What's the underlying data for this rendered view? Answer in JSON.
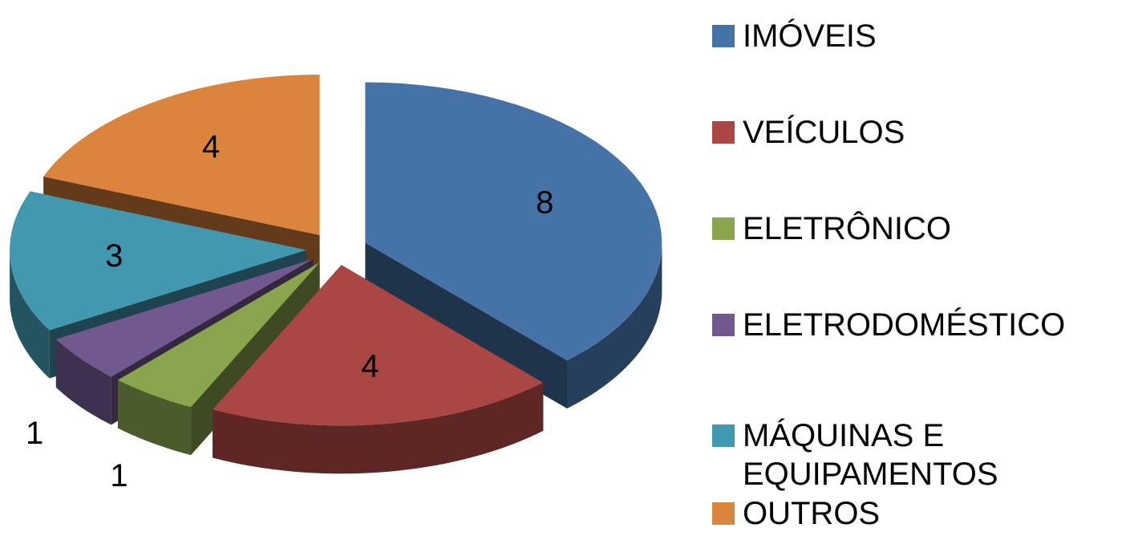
{
  "chart_data": {
    "type": "pie",
    "categories": [
      "IMÓVEIS",
      "VEÍCULOS",
      "ELETRÔNICO",
      "ELETRODOMÉSTICO",
      "MÁQUINAS E EQUIPAMENTOS",
      "OUTROS"
    ],
    "values": [
      8,
      4,
      1,
      1,
      3,
      4
    ],
    "colors": [
      "#4572a7",
      "#aa4643",
      "#89a54e",
      "#71588f",
      "#4198af",
      "#db843d"
    ],
    "legend": "right"
  }
}
